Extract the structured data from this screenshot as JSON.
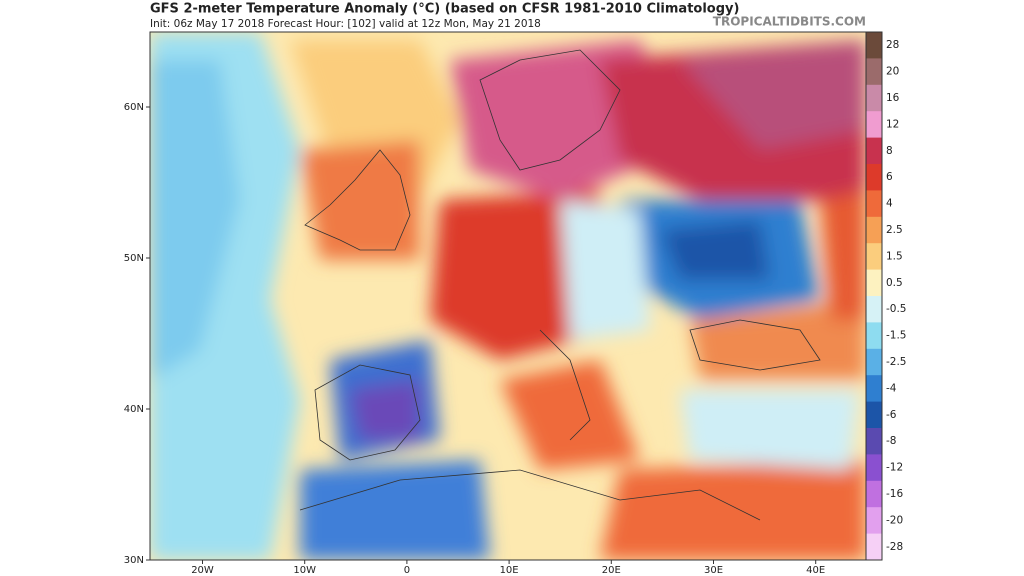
{
  "header": {
    "title": "GFS 2-meter Temperature Anomaly (°C) (based on CFSR 1981-2010 Climatology)",
    "subtitle": "Init: 06z May 17 2018   Forecast Hour: [102]   valid at 12z Mon, May 21 2018",
    "site": "TROPICALTIDBITS.COM"
  },
  "map": {
    "lat_labels": [
      "60N",
      "50N",
      "40N",
      "30N"
    ],
    "lon_labels": [
      "20W",
      "10W",
      "0",
      "10E",
      "20E",
      "30E",
      "40E"
    ]
  },
  "colorbar": {
    "labels": [
      28,
      20,
      16,
      12,
      8,
      6,
      4,
      2.5,
      1.5,
      0.5,
      -0.5,
      -1.5,
      -2.5,
      -4,
      -6,
      -8,
      -12,
      -16,
      -20,
      -28
    ],
    "colors": [
      "#6b4a3a",
      "#9b6b6b",
      "#c98aa8",
      "#f09cd0",
      "#c8324e",
      "#dd3a2a",
      "#ef6a3a",
      "#f6a055",
      "#fbcd7d",
      "#fdf2c0",
      "#d6f2f6",
      "#8edcf0",
      "#5ab0e6",
      "#2f7fd0",
      "#1c55a8",
      "#5a4ab0",
      "#8a50d0",
      "#c070e0",
      "#e2a0ee",
      "#f6d0f6"
    ]
  }
}
